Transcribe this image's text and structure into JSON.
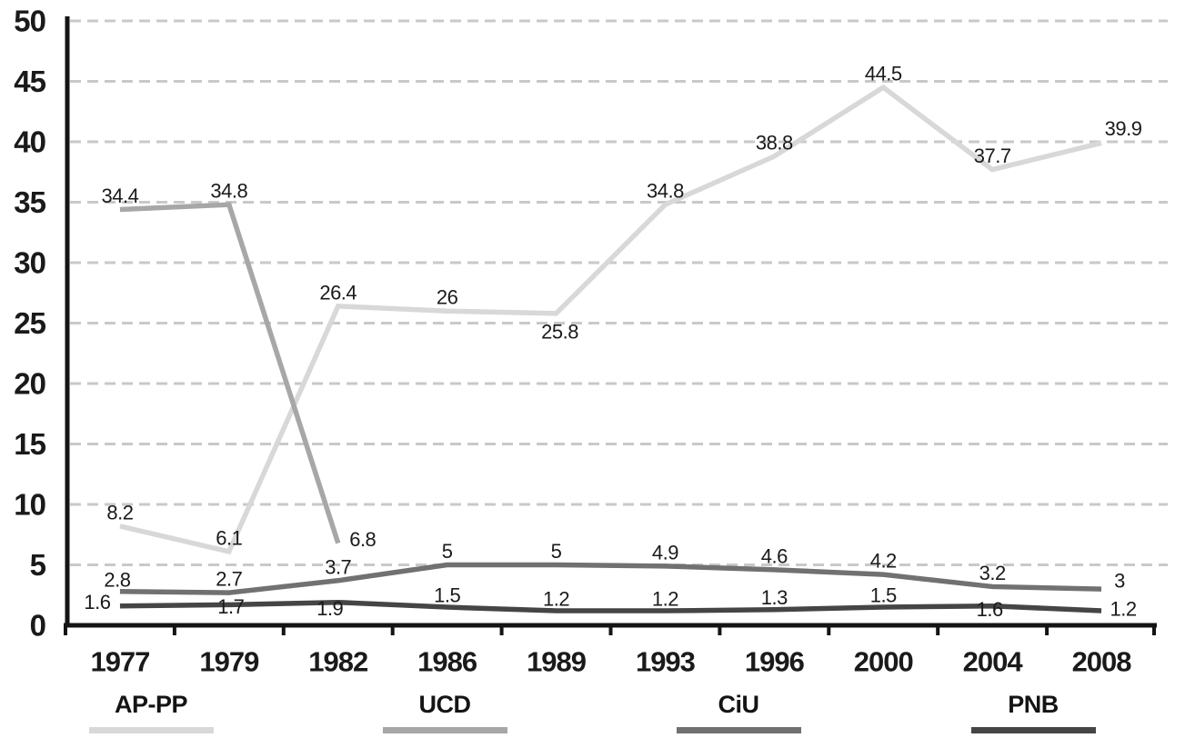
{
  "chart_data": {
    "type": "line",
    "title": "",
    "categories": [
      "1977",
      "1979",
      "1982",
      "1986",
      "1989",
      "1993",
      "1996",
      "2000",
      "2004",
      "2008"
    ],
    "series": [
      {
        "name": "AP-PP",
        "color": "#d8d8d8",
        "values": [
          8.2,
          6.1,
          26.4,
          26,
          25.8,
          34.8,
          38.8,
          44.5,
          37.7,
          39.9
        ]
      },
      {
        "name": "UCD",
        "color": "#a7a7a7",
        "values": [
          34.4,
          34.8,
          6.8,
          null,
          null,
          null,
          null,
          null,
          null,
          null
        ]
      },
      {
        "name": "CiU",
        "color": "#717171",
        "values": [
          2.8,
          2.7,
          3.7,
          5,
          5,
          4.9,
          4.6,
          4.2,
          3.2,
          3
        ]
      },
      {
        "name": "PNB",
        "color": "#454545",
        "values": [
          1.6,
          1.7,
          1.9,
          1.5,
          1.2,
          1.2,
          1.3,
          1.5,
          1.6,
          1.2
        ]
      }
    ],
    "ylim": [
      0,
      50
    ],
    "ytick_step": 5,
    "ytick_labels": [
      "0",
      "5",
      "10",
      "15",
      "20",
      "25",
      "30",
      "35",
      "40",
      "45",
      "50"
    ],
    "grid": "horizontal-dashed",
    "legend_position": "bottom",
    "colors": {
      "axis": "#141414",
      "gridline": "#c9c9c9",
      "text": "#1a1a1a"
    }
  }
}
